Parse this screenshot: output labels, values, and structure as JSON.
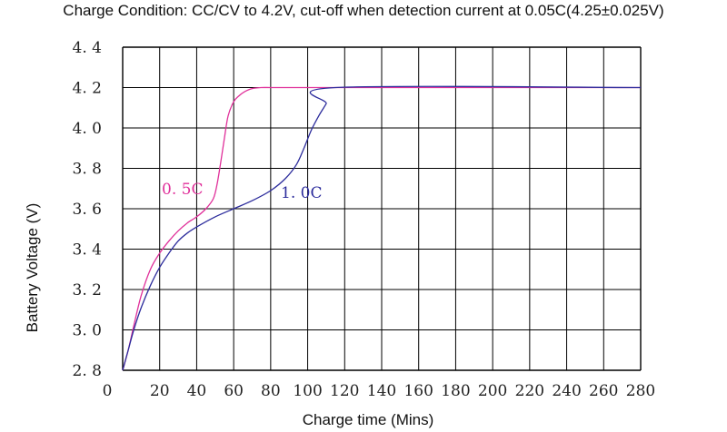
{
  "chart_data": {
    "type": "line",
    "title": "Charge Condition: CC/CV to 4.2V, cut-off when detection current at 0.05C(4.25±0.025V)",
    "xlabel": "Charge time (Mins)",
    "ylabel": "Battery Voltage (V)",
    "xlim": [
      0,
      280
    ],
    "ylim": [
      2.8,
      4.4
    ],
    "x_ticks": [
      0,
      20,
      40,
      60,
      80,
      100,
      120,
      140,
      160,
      180,
      200,
      220,
      240,
      260,
      280
    ],
    "x_tick_labels": [
      "0",
      "20",
      "40",
      "60",
      "80",
      "100",
      "120",
      "140",
      "160",
      "180",
      "200",
      "220",
      "240",
      "260",
      "280"
    ],
    "y_ticks": [
      2.8,
      3.0,
      3.2,
      3.4,
      3.6,
      3.8,
      4.0,
      4.2,
      4.4
    ],
    "y_tick_labels": [
      "2. 8",
      "3. 0",
      "3. 2",
      "3. 4",
      "3. 6",
      "3. 8",
      "4. 0",
      "4. 2",
      "4. 4"
    ],
    "grid": true,
    "colors": {
      "grid": "#000000",
      "series_0_5c": "#e0309a",
      "series_1_0c": "#2c2c9c"
    },
    "series": [
      {
        "name": "0. 5C",
        "color": "#e0309a",
        "x": [
          0,
          3,
          6,
          10,
          15,
          20,
          25,
          30,
          35,
          40,
          45,
          49,
          51,
          53,
          55,
          57,
          60,
          63,
          66,
          70,
          75,
          80,
          90,
          120,
          160,
          200,
          240,
          280
        ],
        "y": [
          2.8,
          2.9,
          3.02,
          3.17,
          3.3,
          3.38,
          3.44,
          3.49,
          3.53,
          3.56,
          3.6,
          3.65,
          3.72,
          3.83,
          3.95,
          4.06,
          4.13,
          4.16,
          4.18,
          4.195,
          4.2,
          4.2,
          4.2,
          4.2,
          4.2,
          4.2,
          4.2,
          4.2
        ]
      },
      {
        "name": "1. 0C",
        "color": "#2c2c9c",
        "x": [
          0,
          3,
          6,
          10,
          15,
          20,
          25,
          30,
          35,
          40,
          50,
          60,
          70,
          80,
          88,
          94,
          98,
          102,
          106,
          110,
          115,
          280
        ],
        "y": [
          2.8,
          2.9,
          3.0,
          3.11,
          3.22,
          3.31,
          3.38,
          3.44,
          3.48,
          3.51,
          3.56,
          3.6,
          3.64,
          3.69,
          3.75,
          3.82,
          3.9,
          3.99,
          4.06,
          4.12,
          4.2,
          4.2
        ]
      }
    ]
  }
}
